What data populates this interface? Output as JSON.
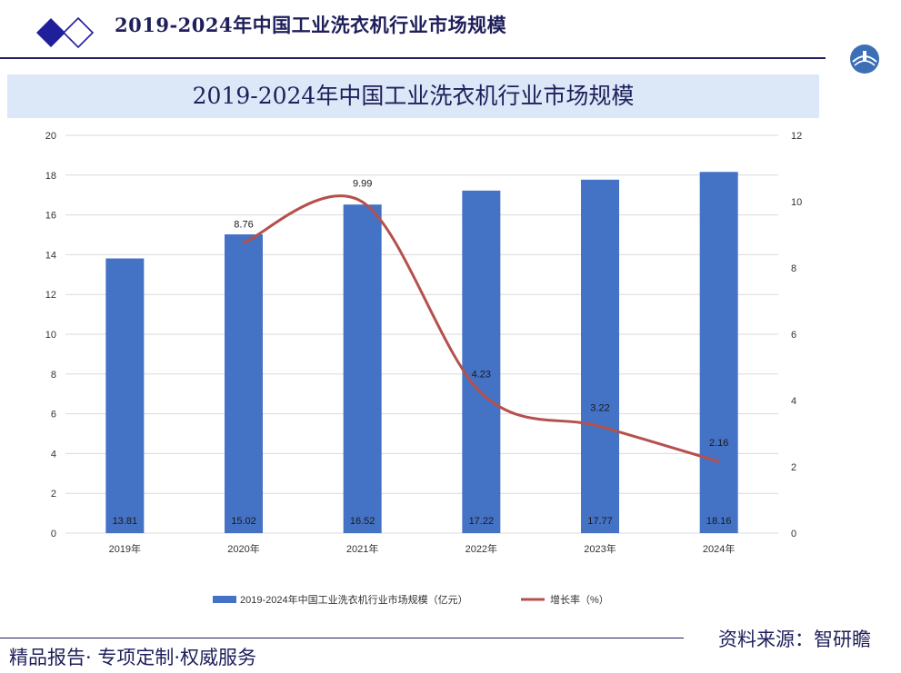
{
  "header": {
    "title": "2019-2024年中国工业洗衣机行业市场规模"
  },
  "footer": {
    "left_text": "精品报告· 专项定制·权威服务",
    "source_label": "资料来源：智研瞻"
  },
  "colors": {
    "bar": "#4472c4",
    "line": "#b5504c",
    "title": "#1f1f5c",
    "banner": "#dce8f7"
  },
  "chart_data": {
    "type": "bar",
    "title": "2019-2024年中国工业洗衣机行业市场规模",
    "categories": [
      "2019年",
      "2020年",
      "2021年",
      "2022年",
      "2023年",
      "2024年"
    ],
    "series": [
      {
        "name": "2019-2024年中国工业洗衣机行业市场规模（亿元）",
        "type": "bar",
        "axis": "left",
        "values": [
          13.81,
          15.02,
          16.52,
          17.22,
          17.77,
          18.16
        ],
        "labels": [
          "13.81",
          "15.02",
          "16.52",
          "17.22",
          "17.77",
          "18.16"
        ]
      },
      {
        "name": "增长率（%）",
        "type": "line",
        "axis": "right",
        "smooth": true,
        "values": [
          null,
          8.76,
          9.99,
          4.23,
          3.22,
          2.16
        ],
        "labels": [
          "",
          "8.76",
          "9.99",
          "4.23",
          "3.22",
          "2.16"
        ]
      }
    ],
    "y_left": {
      "min": 0,
      "max": 20,
      "ticks": [
        "0",
        "2",
        "4",
        "6",
        "8",
        "10",
        "12",
        "14",
        "16",
        "18",
        "20"
      ]
    },
    "y_right": {
      "min": 0,
      "max": 12,
      "ticks": [
        "0",
        "2",
        "4",
        "6",
        "8",
        "10",
        "12"
      ]
    },
    "grid": true,
    "legend_position": "bottom"
  }
}
